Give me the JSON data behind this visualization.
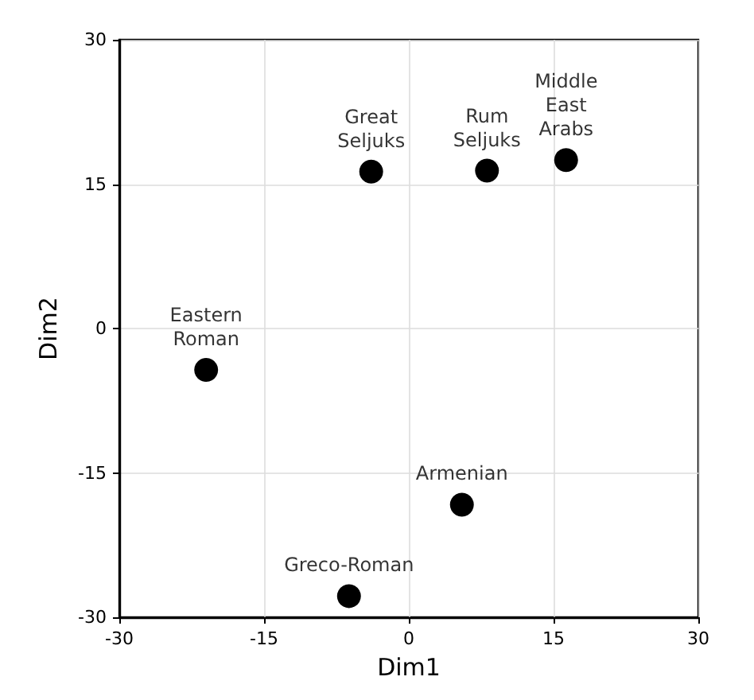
{
  "chart_data": {
    "type": "scatter",
    "xlabel": "Dim1",
    "ylabel": "Dim2",
    "x": [
      -3.9,
      8.1,
      16.3,
      -21.0,
      5.5,
      -6.2
    ],
    "values": [
      16.3,
      16.4,
      17.5,
      -4.3,
      -18.3,
      -27.8
    ],
    "color": "#000000",
    "marker": "circle",
    "xlim": [
      -30,
      30
    ],
    "xticks": [
      -30,
      -15,
      0,
      15,
      30
    ],
    "ylim": [
      -30,
      30
    ],
    "yticks": [
      -30,
      -15,
      0,
      15,
      30
    ],
    "grid": true,
    "annotations": [
      {
        "text": "Great\nSeljuks",
        "x": -3.9,
        "y": 16.3
      },
      {
        "text": "Rum\nSeljuks",
        "x": 8.1,
        "y": 16.4
      },
      {
        "text": "Middle\nEast\nArabs",
        "x": 16.3,
        "y": 17.5
      },
      {
        "text": "Eastern\nRoman",
        "x": -21.0,
        "y": -4.3
      },
      {
        "text": "Armenian",
        "x": 5.5,
        "y": -18.3
      },
      {
        "text": "Greco-Roman",
        "x": -6.2,
        "y": -27.8
      }
    ]
  }
}
